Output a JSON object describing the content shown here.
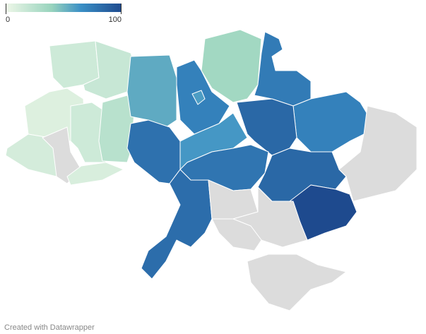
{
  "legend": {
    "min": 0,
    "max": 100
  },
  "regions": {
    "values": [
      15,
      18,
      8,
      12,
      null,
      15,
      10,
      25,
      55,
      72,
      60,
      35,
      75,
      80,
      62,
      72,
      85,
      78,
      85,
      100,
      null,
      82,
      null,
      null,
      null,
      null
    ]
  },
  "footer": "Created with Datawrapper"
}
